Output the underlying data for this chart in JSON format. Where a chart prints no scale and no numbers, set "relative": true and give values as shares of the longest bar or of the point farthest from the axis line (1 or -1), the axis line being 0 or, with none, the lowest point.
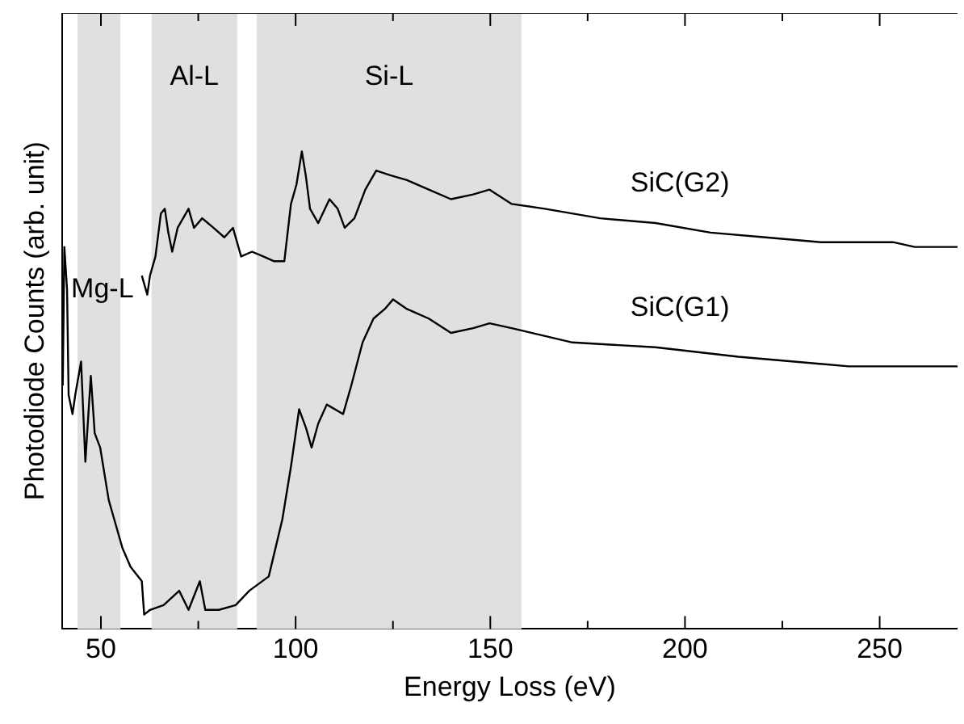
{
  "chart_data": {
    "type": "line",
    "xlabel": "Energy Loss (eV)",
    "ylabel": "Photodiode Counts (arb. unit)",
    "relative": true,
    "xlim": [
      40,
      270
    ],
    "xticks": [
      50,
      {
        "value": 75,
        "label": null
      },
      100,
      {
        "value": 125,
        "label": null
      },
      150,
      {
        "value": 175,
        "label": null
      },
      200,
      {
        "value": 225,
        "label": null
      },
      250
    ],
    "grid": false,
    "legend": false,
    "marker": "none",
    "line_style": "solid",
    "bands": [
      {
        "axis": "x",
        "from": 44,
        "to": 55,
        "label": "Mg-L",
        "color": "#e0e0e0"
      },
      {
        "axis": "x",
        "from": 63,
        "to": 85,
        "label": "Al-L",
        "color": "#e0e0e0"
      },
      {
        "axis": "x",
        "from": 90,
        "to": 158,
        "label": "Si-L",
        "color": "#e0e0e0"
      }
    ],
    "series": [
      {
        "name": "SiC(G2)",
        "color": "#000000",
        "x": [
          60.5,
          61.9,
          62.6,
          64.0,
          65.4,
          66.4,
          67.3,
          68.3,
          69.7,
          72.5,
          73.9,
          76.0,
          78.9,
          81.7,
          83.9,
          86.0,
          88.8,
          91.7,
          94.5,
          97.1,
          98.8,
          100.2,
          101.6,
          102.6,
          103.7,
          105.8,
          108.7,
          110.8,
          112.6,
          115.1,
          117.9,
          120.7,
          124.3,
          128.6,
          134.2,
          139.9,
          145.6,
          149.8,
          155.5,
          164.0,
          178.2,
          192.4,
          206.6,
          220.7,
          234.9,
          253.4,
          259.0,
          270
        ],
        "values": [
          0.74,
          0.7,
          0.74,
          0.78,
          0.87,
          0.88,
          0.83,
          0.79,
          0.84,
          0.88,
          0.84,
          0.86,
          0.84,
          0.82,
          0.84,
          0.78,
          0.79,
          0.78,
          0.77,
          0.77,
          0.89,
          0.93,
          1.0,
          0.95,
          0.88,
          0.85,
          0.9,
          0.88,
          0.84,
          0.86,
          0.92,
          0.96,
          0.95,
          0.94,
          0.92,
          0.9,
          0.91,
          0.92,
          0.89,
          0.88,
          0.86,
          0.85,
          0.83,
          0.82,
          0.81,
          0.81,
          0.8,
          0.8
        ]
      },
      {
        "name": "SiC(G1)",
        "color": "#000000",
        "x": [
          40.2,
          40.6,
          41.3,
          41.7,
          42.7,
          43.4,
          44.9,
          46.0,
          47.4,
          48.4,
          49.8,
          52.0,
          53.4,
          55.5,
          57.6,
          60.5,
          61.1,
          62.6,
          66.1,
          70.1,
          72.5,
          75.4,
          76.8,
          80.3,
          84.6,
          88.1,
          93.1,
          96.6,
          98.8,
          100.9,
          102.7,
          104.1,
          105.8,
          108.0,
          112.2,
          114.3,
          117.2,
          120.0,
          122.9,
          125.0,
          128.6,
          134.2,
          139.9,
          145.6,
          149.8,
          155.5,
          171.1,
          192.4,
          213.7,
          242.0,
          270
        ],
        "values": [
          0.51,
          0.8,
          0.71,
          0.49,
          0.45,
          0.49,
          0.56,
          0.35,
          0.53,
          0.41,
          0.38,
          0.27,
          0.23,
          0.17,
          0.13,
          0.1,
          0.03,
          0.04,
          0.05,
          0.08,
          0.04,
          0.1,
          0.04,
          0.04,
          0.05,
          0.08,
          0.11,
          0.23,
          0.34,
          0.46,
          0.42,
          0.38,
          0.43,
          0.47,
          0.45,
          0.51,
          0.6,
          0.65,
          0.67,
          0.69,
          0.67,
          0.65,
          0.62,
          0.63,
          0.64,
          0.63,
          0.6,
          0.59,
          0.57,
          0.55,
          0.55
        ]
      }
    ]
  }
}
